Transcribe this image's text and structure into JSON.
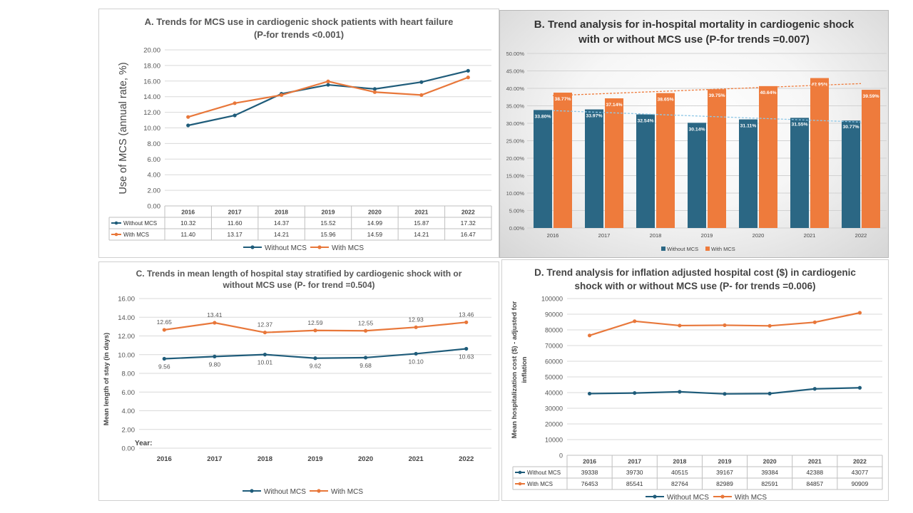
{
  "colors": {
    "without": "#1f5c7a",
    "with": "#e8773a",
    "bar_without": "#2b6784",
    "bar_with": "#ee7b3c"
  },
  "chart_data": [
    {
      "id": "A",
      "type": "line",
      "title_line1": "A. Trends for MCS use in cardiogenic shock patients with heart failure",
      "title_line2": "(P-for trends <0.001)",
      "ylabel": "Use of MCS (annual rate, %)",
      "ylim": [
        0,
        20
      ],
      "yticks": [
        "0.00",
        "2.00",
        "4.00",
        "6.00",
        "8.00",
        "10.00",
        "12.00",
        "14.00",
        "16.00",
        "18.00",
        "20.00"
      ],
      "categories": [
        "2016",
        "2017",
        "2018",
        "2019",
        "2020",
        "2021",
        "2022"
      ],
      "series": [
        {
          "name": "Without MCS",
          "values": [
            10.32,
            11.6,
            14.37,
            15.52,
            14.99,
            15.87,
            17.32
          ],
          "labels": [
            "10.32",
            "11.60",
            "14.37",
            "15.52",
            "14.99",
            "15.87",
            "17.32"
          ]
        },
        {
          "name": "With MCS",
          "values": [
            11.4,
            13.17,
            14.21,
            15.96,
            14.59,
            14.21,
            16.47
          ],
          "labels": [
            "11.40",
            "13.17",
            "14.21",
            "15.96",
            "14.59",
            "14.21",
            "16.47"
          ]
        }
      ],
      "data_table": true
    },
    {
      "id": "B",
      "type": "bar",
      "title_line1": "B. Trend analysis for in-hospital mortality in cardiogenic shock",
      "title_line2": "with or without MCS use (P-for trends =0.007)",
      "ylim": [
        0,
        50
      ],
      "yticks": [
        "0.00%",
        "5.00%",
        "10.00%",
        "15.00%",
        "20.00%",
        "25.00%",
        "30.00%",
        "35.00%",
        "40.00%",
        "45.00%",
        "50.00%"
      ],
      "categories": [
        "2016",
        "2017",
        "2018",
        "2019",
        "2020",
        "2021",
        "2022"
      ],
      "series": [
        {
          "name": "Without MCS",
          "values": [
            33.8,
            33.97,
            32.54,
            30.14,
            31.11,
            31.55,
            30.77
          ],
          "labels": [
            "33.80%",
            "33.97%",
            "32.54%",
            "30.14%",
            "31.11%",
            "31.55%",
            "30.77%"
          ]
        },
        {
          "name": "With MCS",
          "values": [
            38.77,
            37.14,
            38.65,
            39.75,
            40.64,
            42.95,
            39.59
          ],
          "labels": [
            "38.77%",
            "37.14%",
            "38.65%",
            "39.75%",
            "40.64%",
            "42.95%",
            "39.59%"
          ]
        }
      ],
      "trendlines": true
    },
    {
      "id": "C",
      "type": "line",
      "title_line1": "C. Trends in mean length of hospital stay stratified by cardiogenic shock with or",
      "title_line2": "without MCS use (P- for trend =0.504)",
      "ylabel": "Mean length of stay (in days)",
      "xlabel": "Year:",
      "ylim": [
        0,
        16
      ],
      "yticks": [
        "0.00",
        "2.00",
        "4.00",
        "6.00",
        "8.00",
        "10.00",
        "12.00",
        "14.00",
        "16.00"
      ],
      "categories": [
        "2016",
        "2017",
        "2018",
        "2019",
        "2020",
        "2021",
        "2022"
      ],
      "series": [
        {
          "name": "Without MCS",
          "values": [
            9.56,
            9.8,
            10.01,
            9.62,
            9.68,
            10.1,
            10.63
          ],
          "labels": [
            "9.56",
            "9.80",
            "10.01",
            "9.62",
            "9.68",
            "10.10",
            "10.63"
          ]
        },
        {
          "name": "With MCS",
          "values": [
            12.65,
            13.41,
            12.37,
            12.59,
            12.55,
            12.93,
            13.46
          ],
          "labels": [
            "12.65",
            "13.41",
            "12.37",
            "12.59",
            "12.55",
            "12.93",
            "13.46"
          ]
        }
      ]
    },
    {
      "id": "D",
      "type": "line",
      "title_line1": "D. Trend analysis for inflation adjusted hospital cost ($) in cardiogenic",
      "title_line2": "shock with or without MCS use (P- for trends =0.006)",
      "ylabel_line1": "Mean hospitalization cost ($) - adjusted for",
      "ylabel_line2": "inflation",
      "ylim": [
        0,
        100000
      ],
      "yticks": [
        "0",
        "10000",
        "20000",
        "30000",
        "40000",
        "50000",
        "60000",
        "70000",
        "80000",
        "90000",
        "100000"
      ],
      "categories": [
        "2016",
        "2017",
        "2018",
        "2019",
        "2020",
        "2021",
        "2022"
      ],
      "series": [
        {
          "name": "Without MCS",
          "values": [
            39338,
            39730,
            40515,
            39167,
            39384,
            42388,
            43077
          ],
          "labels": [
            "39338",
            "39730",
            "40515",
            "39167",
            "39384",
            "42388",
            "43077"
          ]
        },
        {
          "name": "With MCS",
          "values": [
            76453,
            85541,
            82764,
            82989,
            82591,
            84857,
            90909
          ],
          "labels": [
            "76453",
            "85541",
            "82764",
            "82989",
            "82591",
            "84857",
            "90909"
          ]
        }
      ],
      "data_table": true
    }
  ]
}
